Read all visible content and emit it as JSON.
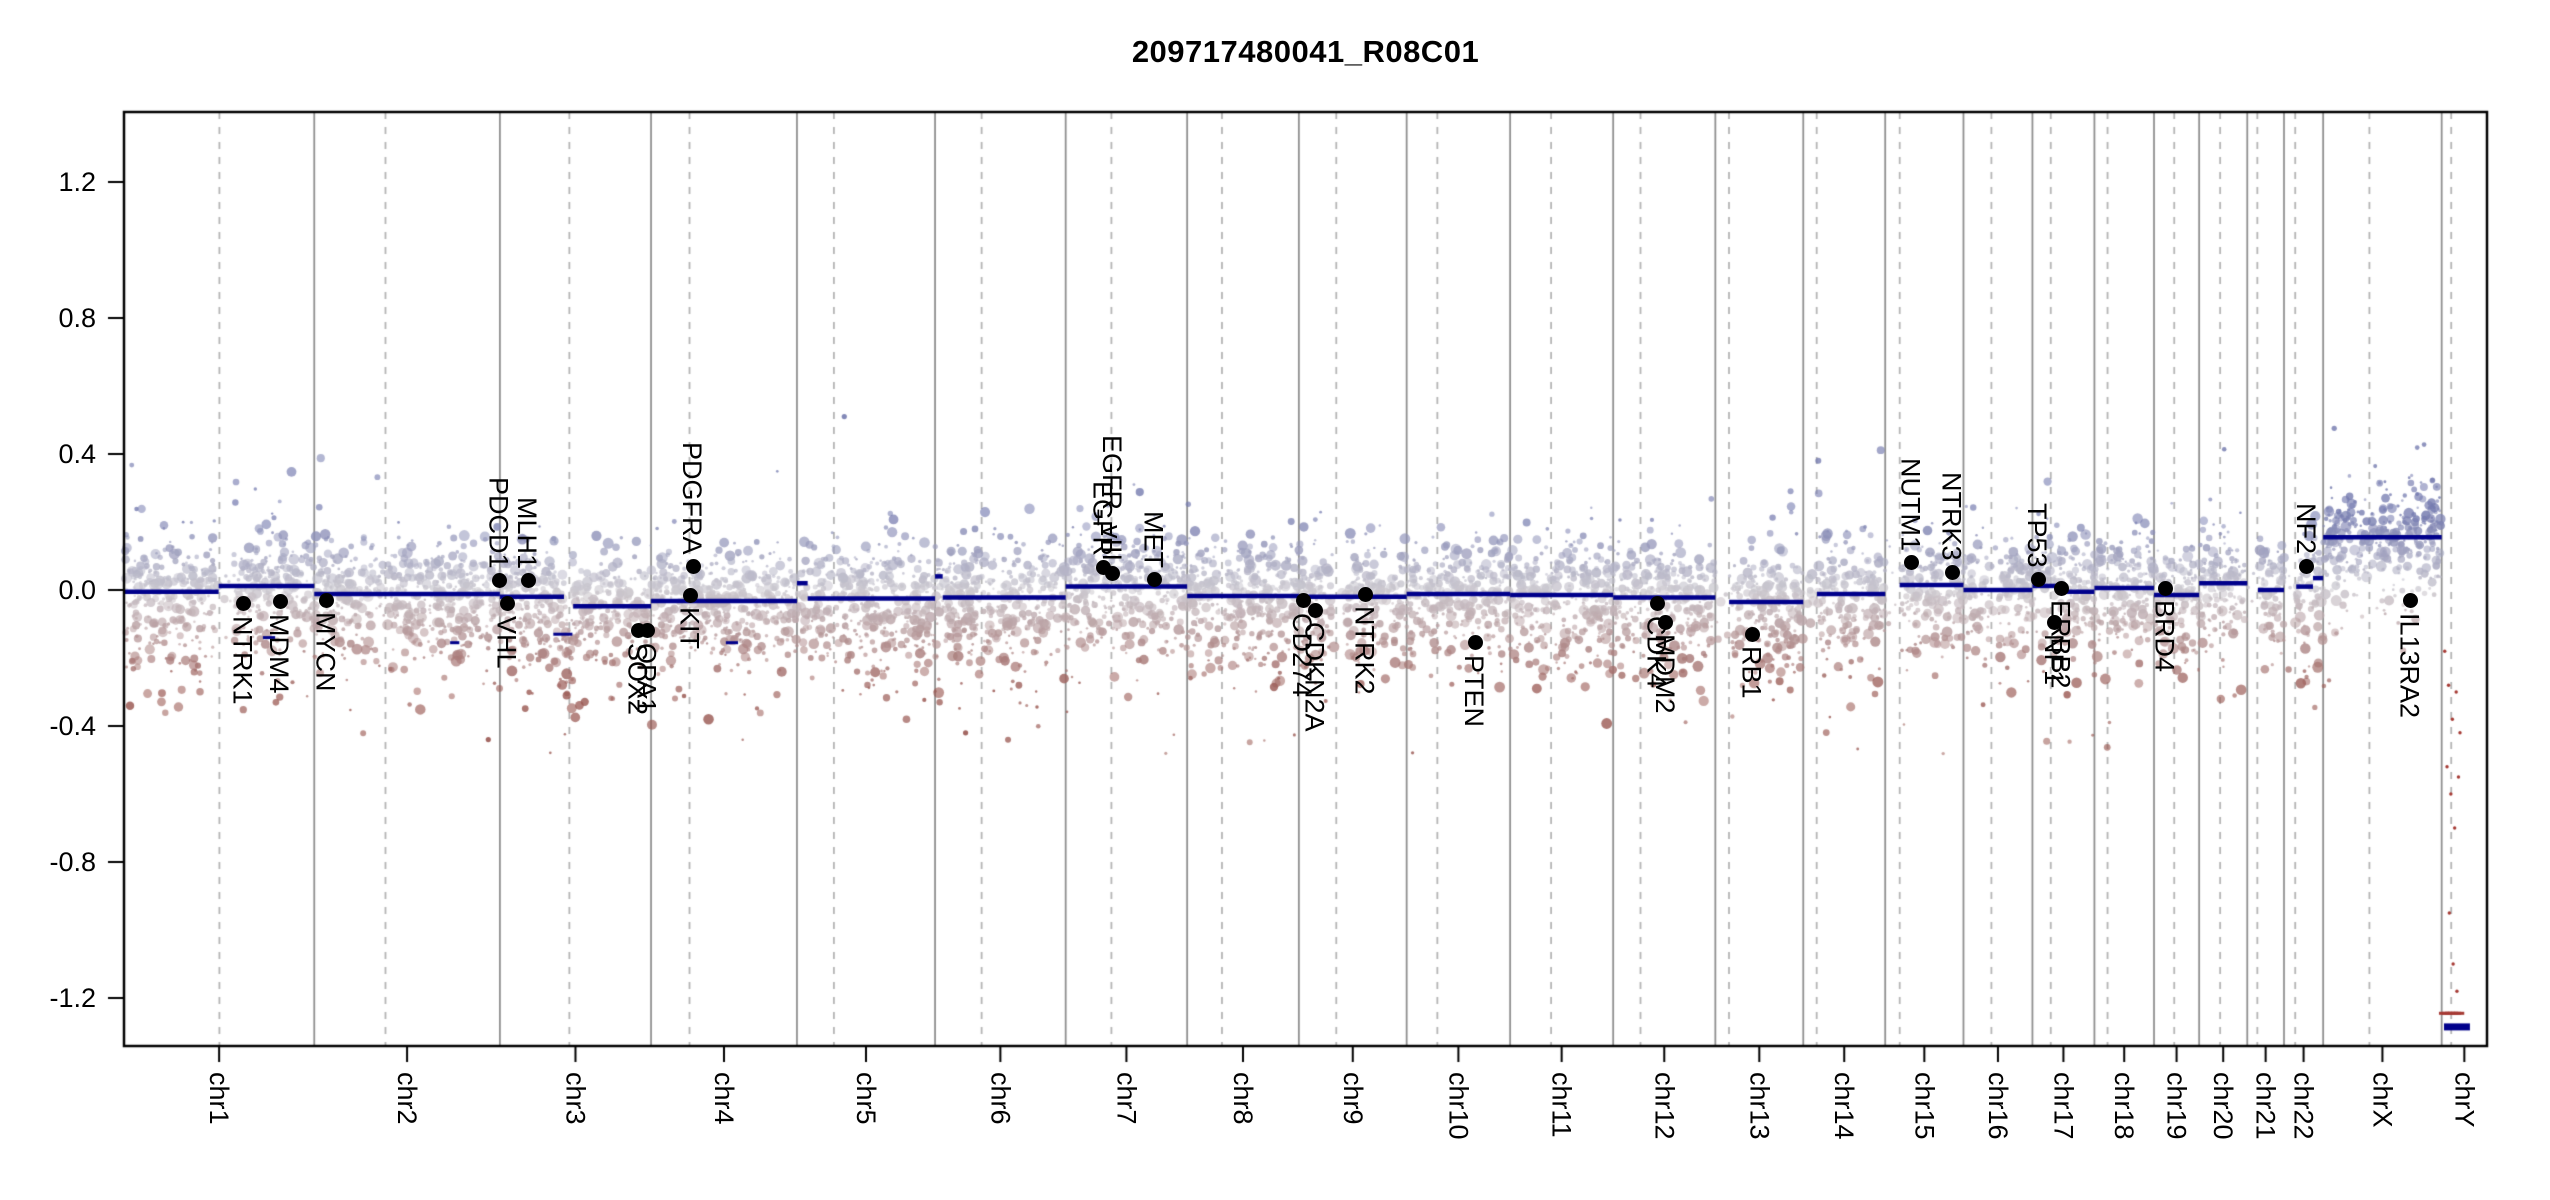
{
  "chart_data": {
    "type": "scatter",
    "title": "209717480041_R08C01",
    "xlabel": "",
    "ylabel": "",
    "ylim": [
      -1.34,
      1.41
    ],
    "grid": false,
    "axis": {
      "yticks": [
        1.2,
        0.8,
        0.4,
        0.0,
        -0.4,
        -0.8,
        -1.2
      ],
      "ytick_labels": [
        "1.2",
        "0.8",
        "0.4",
        "0.0",
        "-0.4",
        "-0.8",
        "-1.2"
      ]
    },
    "colors": {
      "segment": "#00008b",
      "point_gain": "#767cb0",
      "point_neutral": "#cbc8cf",
      "point_loss": "#9a5852",
      "chrY_marks": "#a63a34",
      "boundary_line": "#909090",
      "centromere_line": "#b5b5b5",
      "gene_marker": "#000000",
      "box": "#000000"
    },
    "points_per_mb": 2.4,
    "seed": 7,
    "chromosomes": [
      {
        "name": "chr1",
        "length_mb": 249.25,
        "centromere_mb": 125.0,
        "gaps": [
          [
            120.5,
            144.0
          ]
        ]
      },
      {
        "name": "chr2",
        "length_mb": 243.2,
        "centromere_mb": 93.3
      },
      {
        "name": "chr3",
        "length_mb": 198.02,
        "centromere_mb": 91.0
      },
      {
        "name": "chr4",
        "length_mb": 191.15,
        "centromere_mb": 50.4
      },
      {
        "name": "chr5",
        "length_mb": 180.92,
        "centromere_mb": 48.4
      },
      {
        "name": "chr6",
        "length_mb": 171.12,
        "centromere_mb": 61.0
      },
      {
        "name": "chr7",
        "length_mb": 159.14,
        "centromere_mb": 59.9
      },
      {
        "name": "chr8",
        "length_mb": 146.36,
        "centromere_mb": 45.6
      },
      {
        "name": "chr9",
        "length_mb": 141.21,
        "centromere_mb": 49.0,
        "gaps": [
          [
            44.0,
            63.0
          ]
        ]
      },
      {
        "name": "chr10",
        "length_mb": 135.53,
        "centromere_mb": 40.2
      },
      {
        "name": "chr11",
        "length_mb": 135.01,
        "centromere_mb": 53.7
      },
      {
        "name": "chr12",
        "length_mb": 133.85,
        "centromere_mb": 35.8
      },
      {
        "name": "chr13",
        "length_mb": 115.17,
        "centromere_mb": 17.9,
        "gaps": [
          [
            0,
            18.5
          ]
        ]
      },
      {
        "name": "chr14",
        "length_mb": 107.35,
        "centromere_mb": 17.6,
        "gaps": [
          [
            0,
            18.5
          ]
        ]
      },
      {
        "name": "chr15",
        "length_mb": 102.53,
        "centromere_mb": 19.0,
        "gaps": [
          [
            0,
            19.5
          ]
        ]
      },
      {
        "name": "chr16",
        "length_mb": 90.35,
        "centromere_mb": 36.6,
        "gaps": [
          [
            34.5,
            46.5
          ]
        ]
      },
      {
        "name": "chr17",
        "length_mb": 81.2,
        "centromere_mb": 24.0
      },
      {
        "name": "chr18",
        "length_mb": 78.08,
        "centromere_mb": 17.2
      },
      {
        "name": "chr19",
        "length_mb": 59.13,
        "centromere_mb": 26.5
      },
      {
        "name": "chr20",
        "length_mb": 63.03,
        "centromere_mb": 27.5
      },
      {
        "name": "chr21",
        "length_mb": 48.13,
        "centromere_mb": 13.2,
        "gaps": [
          [
            0,
            14.0
          ]
        ]
      },
      {
        "name": "chr22",
        "length_mb": 51.3,
        "centromere_mb": 14.7,
        "gaps": [
          [
            0,
            16.0
          ]
        ]
      },
      {
        "name": "chrX",
        "length_mb": 155.27,
        "centromere_mb": 60.6
      },
      {
        "name": "chrY",
        "length_mb": 59.37,
        "centromere_mb": 12.5,
        "no_scatter": true
      }
    ],
    "segments": [
      {
        "chrom": "chr1",
        "start_mb": 0,
        "end_mb": 124,
        "value": -0.005
      },
      {
        "chrom": "chr1",
        "start_mb": 124,
        "end_mb": 249.25,
        "value": 0.012
      },
      {
        "chrom": "chr1",
        "start_mb": 182,
        "end_mb": 198,
        "value": -0.14,
        "lw": 3
      },
      {
        "chrom": "chr2",
        "start_mb": 0,
        "end_mb": 243.2,
        "value": -0.012
      },
      {
        "chrom": "chr2",
        "start_mb": 178,
        "end_mb": 190,
        "value": -0.155,
        "lw": 3
      },
      {
        "chrom": "chr3",
        "start_mb": 0,
        "end_mb": 84,
        "value": -0.02
      },
      {
        "chrom": "chr3",
        "start_mb": 70,
        "end_mb": 95,
        "value": -0.13,
        "lw": 3
      },
      {
        "chrom": "chr3",
        "start_mb": 96,
        "end_mb": 198.02,
        "value": -0.048
      },
      {
        "chrom": "chr4",
        "start_mb": 0,
        "end_mb": 191.15,
        "value": -0.032
      },
      {
        "chrom": "chr4",
        "start_mb": 98,
        "end_mb": 114,
        "value": -0.155,
        "lw": 3
      },
      {
        "chrom": "chr5",
        "start_mb": 0,
        "end_mb": 14,
        "value": 0.02
      },
      {
        "chrom": "chr5",
        "start_mb": 14,
        "end_mb": 180.92,
        "value": -0.025
      },
      {
        "chrom": "chr6",
        "start_mb": 0,
        "end_mb": 10,
        "value": 0.04
      },
      {
        "chrom": "chr6",
        "start_mb": 10,
        "end_mb": 171.12,
        "value": -0.022
      },
      {
        "chrom": "chr7",
        "start_mb": 0,
        "end_mb": 159.14,
        "value": 0.01
      },
      {
        "chrom": "chr8",
        "start_mb": 0,
        "end_mb": 146.36,
        "value": -0.018
      },
      {
        "chrom": "chr9",
        "start_mb": 0,
        "end_mb": 141.21,
        "value": -0.02
      },
      {
        "chrom": "chr10",
        "start_mb": 0,
        "end_mb": 135.53,
        "value": -0.012
      },
      {
        "chrom": "chr11",
        "start_mb": 0,
        "end_mb": 135.01,
        "value": -0.015
      },
      {
        "chrom": "chr12",
        "start_mb": 0,
        "end_mb": 133.85,
        "value": -0.022
      },
      {
        "chrom": "chr13",
        "start_mb": 18,
        "end_mb": 115.17,
        "value": -0.035
      },
      {
        "chrom": "chr14",
        "start_mb": 18,
        "end_mb": 107.35,
        "value": -0.012
      },
      {
        "chrom": "chr15",
        "start_mb": 19,
        "end_mb": 102.53,
        "value": 0.015
      },
      {
        "chrom": "chr16",
        "start_mb": 0,
        "end_mb": 90.35,
        "value": 0.0
      },
      {
        "chrom": "chr17",
        "start_mb": 0,
        "end_mb": 40,
        "value": 0.012
      },
      {
        "chrom": "chr17",
        "start_mb": 40,
        "end_mb": 81.2,
        "value": -0.005
      },
      {
        "chrom": "chr18",
        "start_mb": 0,
        "end_mb": 78.08,
        "value": 0.006
      },
      {
        "chrom": "chr19",
        "start_mb": 0,
        "end_mb": 59.13,
        "value": -0.015
      },
      {
        "chrom": "chr20",
        "start_mb": 0,
        "end_mb": 63.03,
        "value": 0.02
      },
      {
        "chrom": "chr21",
        "start_mb": 14,
        "end_mb": 48.13,
        "value": 0.0
      },
      {
        "chrom": "chr22",
        "start_mb": 16,
        "end_mb": 38,
        "value": 0.01
      },
      {
        "chrom": "chr22",
        "start_mb": 38,
        "end_mb": 51.3,
        "value": 0.035
      },
      {
        "chrom": "chrX",
        "start_mb": 0,
        "end_mb": 155.27,
        "value": 0.155
      },
      {
        "chrom": "chrY",
        "start_mb": 3,
        "end_mb": 37,
        "value": -1.285,
        "lw": 7
      }
    ],
    "genes": [
      {
        "name": "NTRK1",
        "chrom": "chr1",
        "mb": 156.8,
        "value": -0.04,
        "side": "below",
        "dx": 0
      },
      {
        "name": "MDM4",
        "chrom": "chr1",
        "mb": 204.5,
        "value": -0.035,
        "side": "below",
        "dx": 0
      },
      {
        "name": "MYCN",
        "chrom": "chr2",
        "mb": 16.1,
        "value": -0.03,
        "side": "below",
        "dx": 0
      },
      {
        "name": "PDCD1",
        "chrom": "chr2",
        "mb": 242.6,
        "value": 0.027,
        "side": "above",
        "dx": 0
      },
      {
        "name": "MLH1",
        "chrom": "chr3",
        "mb": 37.0,
        "value": 0.027,
        "side": "above",
        "dx": 0
      },
      {
        "name": "VHL",
        "chrom": "chr3",
        "mb": 10.2,
        "value": -0.04,
        "side": "below",
        "dx": 0
      },
      {
        "name": "SOX2",
        "chrom": "chr3",
        "mb": 181.4,
        "value": -0.12,
        "side": "below",
        "dx": 0
      },
      {
        "name": "OPA1",
        "chrom": "chr3",
        "mb": 193.3,
        "value": -0.12,
        "side": "below",
        "dx": 0
      },
      {
        "name": "PDGFRA",
        "chrom": "chr4",
        "mb": 55.1,
        "value": 0.068,
        "side": "above",
        "dx": 0
      },
      {
        "name": "KIT",
        "chrom": "chr4",
        "mb": 55.5,
        "value": -0.015,
        "side": "below",
        "dx": -3
      },
      {
        "name": "EGFR",
        "chrom": "chr7",
        "mb": 55.1,
        "value": 0.065,
        "side": "above",
        "dx": -4
      },
      {
        "name": "EGFR_vIII",
        "chrom": "chr7",
        "mb": 55.3,
        "value": 0.05,
        "side": "above",
        "dx": 5
      },
      {
        "name": "MET",
        "chrom": "chr7",
        "mb": 116.3,
        "value": 0.03,
        "side": "above",
        "dx": 0
      },
      {
        "name": "CD274",
        "chrom": "chr9",
        "mb": 5.5,
        "value": -0.032,
        "side": "below",
        "dx": 0
      },
      {
        "name": "CDKN2A",
        "chrom": "chr9",
        "mb": 22.0,
        "value": -0.06,
        "side": "below",
        "dx": 0
      },
      {
        "name": "NTRK2",
        "chrom": "chr9",
        "mb": 87.3,
        "value": -0.012,
        "side": "below",
        "dx": 0
      },
      {
        "name": "PTEN",
        "chrom": "chr10",
        "mb": 89.7,
        "value": -0.155,
        "side": "below",
        "dx": 0
      },
      {
        "name": "CDK4",
        "chrom": "chr12",
        "mb": 58.1,
        "value": -0.04,
        "side": "below",
        "dx": 0
      },
      {
        "name": "MDM2",
        "chrom": "chr12",
        "mb": 69.2,
        "value": -0.095,
        "side": "below",
        "dx": 0
      },
      {
        "name": "RB1",
        "chrom": "chr13",
        "mb": 48.9,
        "value": -0.13,
        "side": "below",
        "dx": 0
      },
      {
        "name": "NUTM1",
        "chrom": "chr15",
        "mb": 34.6,
        "value": 0.08,
        "side": "above",
        "dx": 0
      },
      {
        "name": "NTRK3",
        "chrom": "chr15",
        "mb": 88.4,
        "value": 0.052,
        "side": "above",
        "dx": 0
      },
      {
        "name": "TP53",
        "chrom": "chr17",
        "mb": 7.6,
        "value": 0.03,
        "side": "above",
        "dx": 0
      },
      {
        "name": "NF1",
        "chrom": "chr17",
        "mb": 29.4,
        "value": -0.095,
        "side": "below",
        "dx": 0
      },
      {
        "name": "ERBB2",
        "chrom": "chr17",
        "mb": 37.9,
        "value": 0.005,
        "side": "below",
        "dx": 0
      },
      {
        "name": "BRD4",
        "chrom": "chr19",
        "mb": 15.3,
        "value": 0.005,
        "side": "below",
        "dx": 0
      },
      {
        "name": "NF2",
        "chrom": "chr22",
        "mb": 30.0,
        "value": 0.07,
        "side": "above",
        "dx": 0
      },
      {
        "name": "IL13RA2",
        "chrom": "chrX",
        "mb": 114.2,
        "value": -0.032,
        "side": "below",
        "dx": 0
      }
    ],
    "chrY_marks": {
      "dots": [
        [
          4,
          -0.18
        ],
        [
          9,
          -0.28
        ],
        [
          14,
          -0.38
        ],
        [
          19,
          -0.3
        ],
        [
          7,
          -0.52
        ],
        [
          12,
          -0.6
        ],
        [
          17,
          -0.7
        ],
        [
          22,
          -0.55
        ],
        [
          10,
          -0.95
        ],
        [
          15,
          -1.1
        ],
        [
          20,
          -1.18
        ],
        [
          24,
          -0.42
        ]
      ],
      "dashes": [
        [
          3,
          -1.245
        ],
        [
          7,
          -1.245
        ],
        [
          11,
          -1.245
        ],
        [
          15,
          -1.245
        ],
        [
          19,
          -1.245
        ],
        [
          23,
          -1.245
        ]
      ]
    },
    "outliers": [
      {
        "chrom": "chr5",
        "mb": 62,
        "value": 0.51
      },
      {
        "chrom": "chr6",
        "mb": 40,
        "value": -0.42
      },
      {
        "chrom": "chr2",
        "mb": 228,
        "value": -0.44
      }
    ]
  }
}
